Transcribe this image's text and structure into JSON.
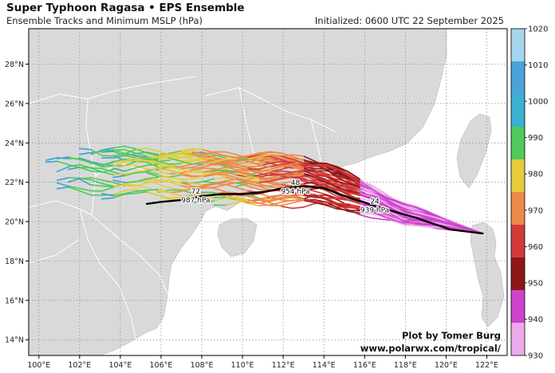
{
  "header": {
    "title": "Super Typhoon Ragasa • EPS Ensemble",
    "subtitle": "Ensemble Tracks and Minimum MSLP (hPa)",
    "initialized": "Initialized: 0600 UTC 22 September 2025"
  },
  "credit": {
    "line1": "Plot by Tomer Burg",
    "line2": "www.polarwx.com/tropical/"
  },
  "map": {
    "lon_range": [
      99.5,
      123
    ],
    "lat_range": [
      13.2,
      29.8
    ],
    "lon_ticks": [
      "100°E",
      "102°E",
      "104°E",
      "106°E",
      "108°E",
      "110°E",
      "112°E",
      "114°E",
      "116°E",
      "118°E",
      "120°E",
      "122°E"
    ],
    "lat_ticks": [
      "14°N",
      "16°N",
      "18°N",
      "20°N",
      "22°N",
      "24°N",
      "26°N",
      "28°N"
    ],
    "land_color": "#d9d9d9",
    "ocean_color": "#ffffff",
    "border_color": "#ffffff"
  },
  "colorbar": {
    "labels": [
      "1020",
      "1010",
      "1000",
      "990",
      "980",
      "970",
      "960",
      "950",
      "940",
      "930"
    ],
    "colors": [
      "#a6d6ee",
      "#4aa3d8",
      "#3bb0d0",
      "#4fc95a",
      "#e4cc3c",
      "#ec8a4a",
      "#d23a3a",
      "#8e1818",
      "#cc44cc",
      "#ecaaec"
    ]
  },
  "mean_track": {
    "points": [
      [
        121.8,
        19.4
      ],
      [
        120.2,
        19.6
      ],
      [
        118.5,
        20.2
      ],
      [
        116.5,
        20.8
      ],
      [
        115.0,
        21.3
      ],
      [
        114.0,
        21.7
      ],
      [
        113.0,
        21.8
      ],
      [
        112.0,
        21.7
      ],
      [
        111.0,
        21.5
      ],
      [
        110.0,
        21.4
      ],
      [
        109.0,
        21.4
      ],
      [
        108.0,
        21.3
      ],
      [
        107.0,
        21.1
      ],
      [
        106.0,
        21.0
      ],
      [
        105.3,
        20.9
      ]
    ],
    "labels": [
      {
        "hour": "24",
        "pressure": "939 hPa",
        "lon": 116.5,
        "lat": 20.8
      },
      {
        "hour": "48",
        "pressure": "954 hPa",
        "lon": 112.6,
        "lat": 21.75
      },
      {
        "hour": "72",
        "pressure": "987 hPa",
        "lon": 107.7,
        "lat": 21.3
      }
    ]
  }
}
